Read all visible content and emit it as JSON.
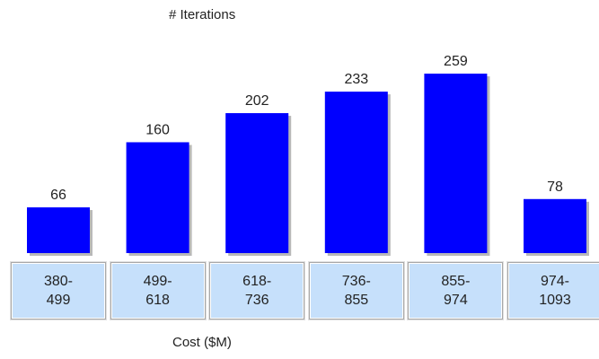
{
  "chart_data": {
    "type": "bar",
    "title": "# Iterations",
    "xlabel": "Cost ($M)",
    "categories": [
      "380- 499",
      "499- 618",
      "618- 736",
      "736- 855",
      "855- 974",
      "974- 1093"
    ],
    "values": [
      66,
      160,
      202,
      233,
      259,
      78
    ],
    "color": "#0000ff"
  }
}
